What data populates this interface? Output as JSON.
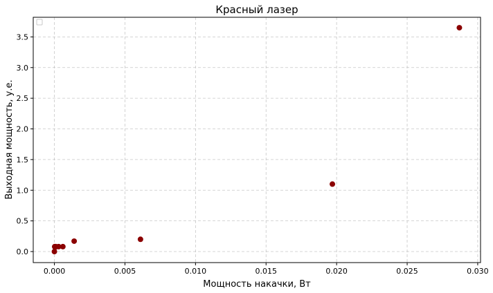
{
  "chart_data": {
    "type": "scatter",
    "title": "Красный лазер",
    "xlabel": "Мощность накачки, Вт",
    "ylabel": "Выходная мощность, у.е.",
    "xlim": [
      -0.0015,
      0.0302
    ],
    "ylim": [
      -0.18,
      3.82
    ],
    "xticks": [
      0.0,
      0.005,
      0.01,
      0.015,
      0.02,
      0.025,
      0.03
    ],
    "xtick_labels": [
      "0.000",
      "0.005",
      "0.010",
      "0.015",
      "0.020",
      "0.025",
      "0.030"
    ],
    "yticks": [
      0.0,
      0.5,
      1.0,
      1.5,
      2.0,
      2.5,
      3.0,
      3.5
    ],
    "ytick_labels": [
      "0.0",
      "0.5",
      "1.0",
      "1.5",
      "2.0",
      "2.5",
      "3.0",
      "3.5"
    ],
    "grid": true,
    "legend": "top-left, empty",
    "marker_color": "#8b0000",
    "series": [
      {
        "x": [
          0.0,
          2e-05,
          5e-05,
          0.0001,
          0.0003,
          0.0006,
          0.0014,
          0.0061,
          0.0197,
          0.0287
        ],
        "y": [
          0.0,
          0.08,
          0.07,
          0.08,
          0.08,
          0.08,
          0.17,
          0.2,
          1.1,
          3.65
        ]
      }
    ]
  }
}
